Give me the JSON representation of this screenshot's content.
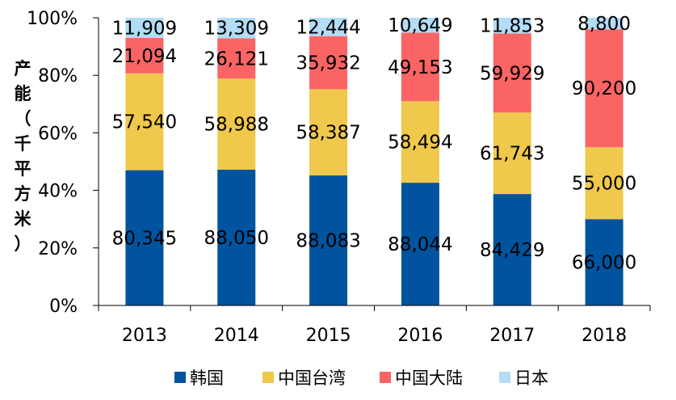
{
  "chart_data": {
    "type": "bar",
    "stacked": "percent",
    "ylabel": "产能（千平方米）",
    "ylim": [
      0,
      100
    ],
    "yticks": [
      "0%",
      "20%",
      "40%",
      "60%",
      "80%",
      "100%"
    ],
    "categories": [
      "2013",
      "2014",
      "2015",
      "2016",
      "2017",
      "2018"
    ],
    "series": [
      {
        "name": "韩国",
        "color": "#00549F",
        "values": [
          80345,
          88050,
          88083,
          88044,
          84429,
          66000
        ],
        "labels": [
          "80,345",
          "88,050",
          "88,083",
          "88,044",
          "84,429",
          "66,000"
        ]
      },
      {
        "name": "中国台湾",
        "color": "#F0C84B",
        "values": [
          57540,
          58988,
          58387,
          58494,
          61743,
          55000
        ],
        "labels": [
          "57,540",
          "58,988",
          "58,387",
          "58,494",
          "61,743",
          "55,000"
        ]
      },
      {
        "name": "中国大陆",
        "color": "#FA6464",
        "values": [
          21094,
          26121,
          35932,
          49153,
          59929,
          90200
        ],
        "labels": [
          "21,094",
          "26,121",
          "35,932",
          "49,153",
          "59,929",
          "90,200"
        ]
      },
      {
        "name": "日本",
        "color": "#B3DCF5",
        "values": [
          11909,
          13309,
          12444,
          10649,
          11853,
          8800
        ],
        "labels": [
          "11,909",
          "13,309",
          "12,444",
          "10,649",
          "11,853",
          "8,800"
        ]
      }
    ],
    "legend_position": "bottom",
    "grid": false
  }
}
